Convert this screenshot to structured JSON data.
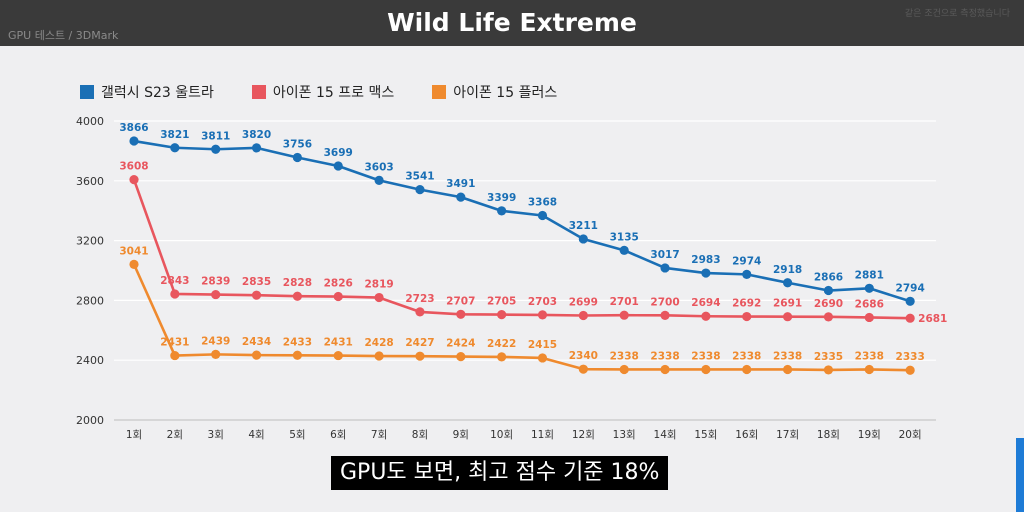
{
  "header": {
    "title": "Wild Life Extreme",
    "crumb": "GPU 테스트 / 3DMark",
    "note": "같은 조건으로 측정했습니다"
  },
  "subtitle": "GPU도 보면, 최고 점수 기준 18%",
  "chart_data": {
    "type": "line",
    "title": "",
    "xlabel": "",
    "ylabel": "",
    "ylim": [
      2000,
      4000
    ],
    "yticks": [
      2000,
      2400,
      2800,
      3200,
      3600,
      4000
    ],
    "grid": true,
    "legend": "top-left",
    "categories": [
      "1회",
      "2회",
      "3회",
      "4회",
      "5회",
      "6회",
      "7회",
      "8회",
      "9회",
      "10회",
      "11회",
      "12회",
      "13회",
      "14회",
      "15회",
      "16회",
      "17회",
      "18회",
      "19회",
      "20회"
    ],
    "series": [
      {
        "name": "갤럭시 S23 울트라",
        "color": "#1a6fb5",
        "values": [
          3866,
          3821,
          3811,
          3820,
          3756,
          3699,
          3603,
          3541,
          3491,
          3399,
          3368,
          3211,
          3135,
          3017,
          2983,
          2974,
          2918,
          2866,
          2881,
          2794
        ]
      },
      {
        "name": "아이폰 15 프로 맥스",
        "color": "#e8565e",
        "values": [
          3608,
          2843,
          2839,
          2835,
          2828,
          2826,
          2819,
          2723,
          2707,
          2705,
          2703,
          2699,
          2701,
          2700,
          2694,
          2692,
          2691,
          2690,
          2686,
          2681
        ]
      },
      {
        "name": "아이폰 15 플러스",
        "color": "#ef8a2e",
        "values": [
          3041,
          2431,
          2439,
          2434,
          2433,
          2431,
          2428,
          2427,
          2424,
          2422,
          2415,
          2340,
          2338,
          2338,
          2338,
          2338,
          2338,
          2335,
          2338,
          2333
        ]
      }
    ]
  }
}
